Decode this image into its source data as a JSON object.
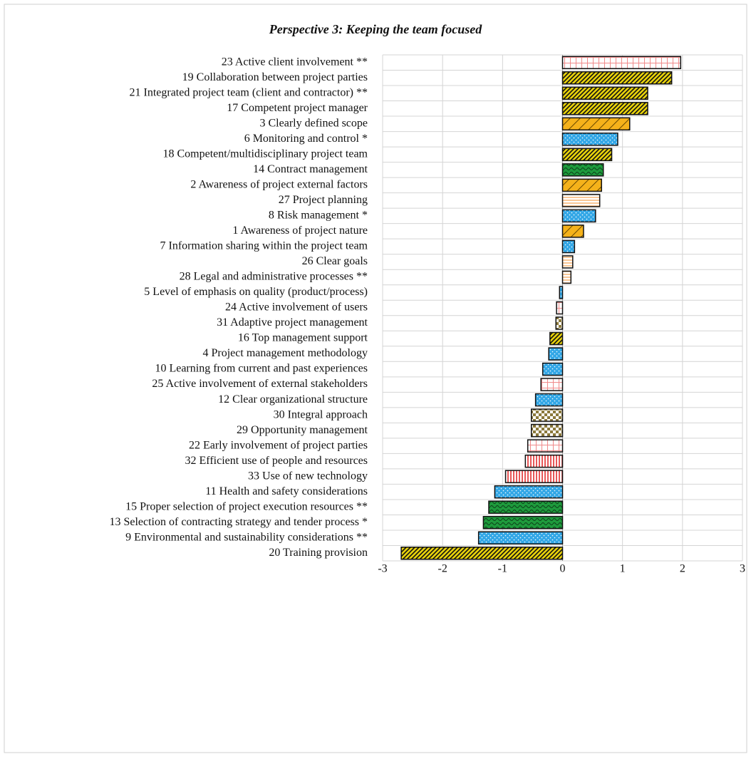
{
  "chart_data": {
    "type": "hbar",
    "title": "Perspective 3: Keeping the team focused",
    "categories": [
      "23 Active client involvement **",
      "19 Collaboration between project parties",
      "21 Integrated project team (client and contractor) **",
      "17 Competent project manager",
      "3 Clearly defined scope",
      "6 Monitoring and control *",
      "18 Competent/multidisciplinary project team",
      "14 Contract management",
      "2 Awareness of project external factors",
      "27 Project planning",
      "8 Risk management *",
      "1 Awareness of project nature",
      "7 Information sharing within the project team",
      "26 Clear goals",
      "28 Legal and administrative processes **",
      "5 Level of emphasis on quality (product/process)",
      "24 Active involvement of users",
      "31 Adaptive project management",
      "16 Top management support",
      "4 Project management methodology",
      "10 Learning from current and past experiences",
      "25 Active involvement of external stakeholders",
      "12 Clear organizational structure",
      "30 Integral approach",
      "29 Opportunity management",
      "22 Early involvement of project parties",
      "32 Efficient use of people and resources",
      "33 Use of new technology",
      "11 Health and safety considerations",
      "15 Proper selection of project execution resources **",
      "13 Selection of contracting strategy and tender process *",
      "9 Environmental and sustainability considerations **",
      "20 Training provision"
    ],
    "values": [
      1.97,
      1.82,
      1.42,
      1.42,
      1.12,
      0.92,
      0.82,
      0.68,
      0.65,
      0.62,
      0.55,
      0.35,
      0.2,
      0.17,
      0.14,
      -0.05,
      -0.1,
      -0.11,
      -0.21,
      -0.23,
      -0.33,
      -0.36,
      -0.45,
      -0.52,
      -0.52,
      -0.58,
      -0.62,
      -0.95,
      -1.13,
      -1.23,
      -1.32,
      -1.4,
      -2.69
    ],
    "colors": [
      "#f08a8a",
      "#e8d20a",
      "#e8d20a",
      "#e8d20a",
      "#f5b21a",
      "#33a7e6",
      "#e8d20a",
      "#1e9a3c",
      "#f5b21a",
      "#f7a95c",
      "#33a7e6",
      "#f5b21a",
      "#33a7e6",
      "#f7a95c",
      "#f7a95c",
      "#33a7e6",
      "#f08a8a",
      "#8c7a3c",
      "#e8d20a",
      "#33a7e6",
      "#33a7e6",
      "#f08a8a",
      "#33a7e6",
      "#8c7a3c",
      "#8c7a3c",
      "#f08a8a",
      "#e02020",
      "#e02020",
      "#33a7e6",
      "#1e9a3c",
      "#1e9a3c",
      "#33a7e6",
      "#e8d20a"
    ],
    "patterns": [
      "grid",
      "stripes",
      "stripes",
      "stripes",
      "wide-diagonal",
      "dots",
      "stripes",
      "waves",
      "wide-diagonal",
      "horizontal",
      "dots",
      "wide-diagonal",
      "dots",
      "horizontal",
      "horizontal",
      "dots",
      "grid",
      "checker",
      "stripes",
      "dots",
      "dots",
      "grid",
      "dots",
      "checker",
      "checker",
      "grid",
      "vertical",
      "vertical",
      "dots",
      "waves",
      "waves",
      "dots",
      "stripes"
    ],
    "xlim": [
      -3,
      3
    ],
    "xticks": [
      -3,
      -2,
      -1,
      0,
      1,
      2,
      3
    ],
    "grid": true
  }
}
